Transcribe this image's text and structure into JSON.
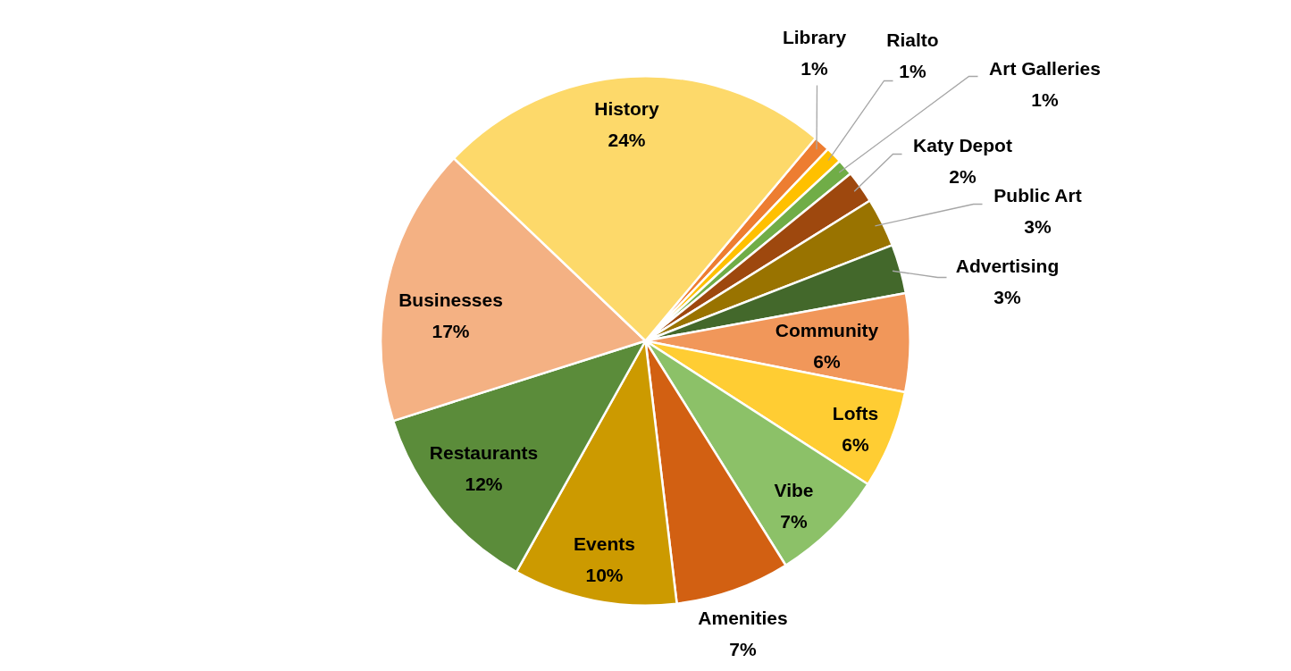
{
  "chart_data": {
    "type": "pie",
    "categories": [
      "Library",
      "Rialto",
      "Art Galleries",
      "Katy Depot",
      "Public Art",
      "Advertising",
      "Community",
      "Lofts",
      "Vibe",
      "Amenities",
      "Events",
      "Restaurants",
      "Businesses",
      "History"
    ],
    "values": [
      1,
      1,
      1,
      2,
      3,
      3,
      6,
      6,
      7,
      7,
      10,
      12,
      17,
      24
    ],
    "colors": [
      "#ed7d31",
      "#ffc000",
      "#70ad47",
      "#9e480e",
      "#997300",
      "#43682b",
      "#f1975a",
      "#ffcd33",
      "#8cc168",
      "#d26012",
      "#cc9a00",
      "#5b8c3a",
      "#f4b183",
      "#fdd96a"
    ],
    "value_labels": [
      "1%",
      "1%",
      "1%",
      "2%",
      "3%",
      "3%",
      "6%",
      "6%",
      "7%",
      "7%",
      "10%",
      "12%",
      "17%",
      "24%"
    ],
    "legend": false
  }
}
